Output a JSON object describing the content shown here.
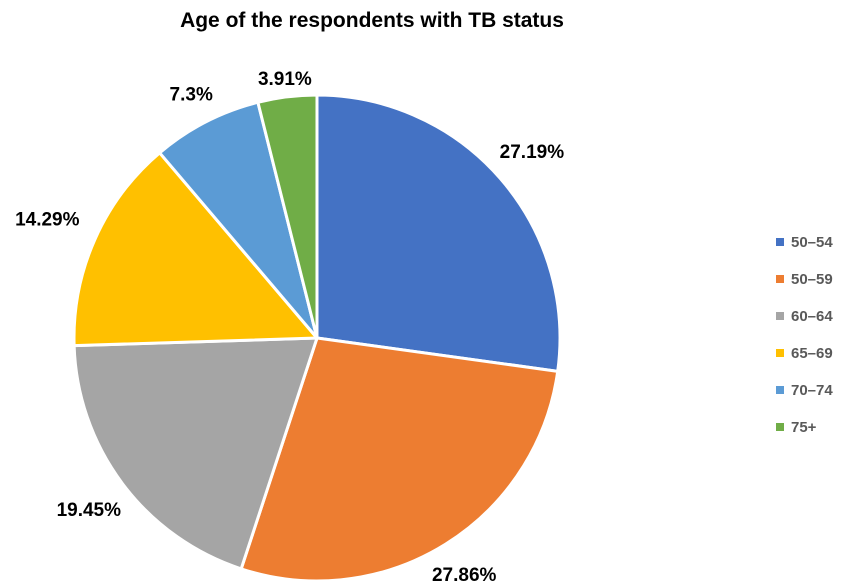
{
  "chart_data": {
    "type": "pie",
    "title": "Age of the respondents with TB status",
    "categories": [
      "50–54",
      "50–59",
      "60–64",
      "65–69",
      "70–74",
      "75+"
    ],
    "values": [
      27.19,
      27.86,
      19.45,
      14.29,
      7.3,
      3.91
    ],
    "data_labels": [
      "27.19%",
      "27.86%",
      "19.45%",
      "14.29%",
      "7.3%",
      "3.91%"
    ],
    "colors": [
      "#4472C4",
      "#ED7D31",
      "#A5A5A5",
      "#FFC000",
      "#5B9BD5",
      "#70AD47"
    ],
    "start_angle": "12 o'clock",
    "direction": "clockwise",
    "legend_position": "right"
  }
}
